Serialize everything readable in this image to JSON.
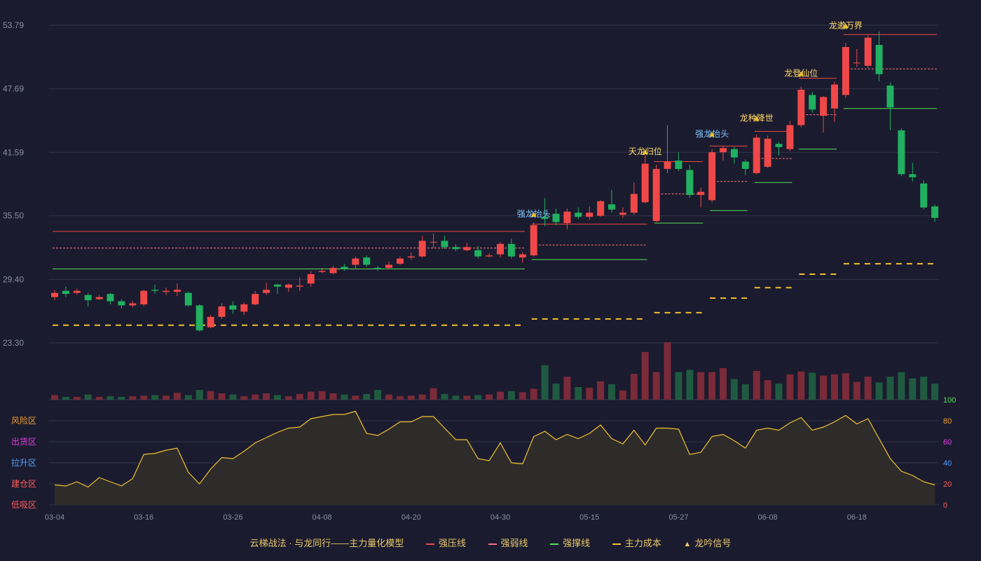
{
  "chart_data": {
    "type": "candlestick",
    "price_axis": {
      "ticks": [
        "53.79",
        "47.69",
        "41.59",
        "35.50",
        "29.40",
        "23.30"
      ],
      "min": 23.3,
      "max": 53.79
    },
    "x_ticks": [
      "03-04",
      "03-16",
      "03-26",
      "04-08",
      "04-20",
      "04-30",
      "05-15",
      "05-27",
      "06-08",
      "06-18"
    ],
    "x_tick_index": [
      0,
      8,
      16,
      24,
      32,
      40,
      48,
      56,
      64,
      72
    ],
    "candles": [
      [
        27.7,
        28.1,
        27.4,
        28.4
      ],
      [
        28.3,
        28.0,
        27.7,
        28.7
      ],
      [
        28.1,
        28.3,
        27.9,
        28.5
      ],
      [
        27.9,
        27.4,
        26.8,
        28.1
      ],
      [
        27.5,
        27.7,
        27.4,
        27.9
      ],
      [
        28.0,
        27.3,
        27.0,
        28.1
      ],
      [
        27.3,
        26.9,
        26.6,
        27.5
      ],
      [
        26.9,
        27.1,
        26.7,
        27.3
      ],
      [
        27.0,
        28.3,
        26.8,
        28.4
      ],
      [
        28.4,
        28.3,
        28.0,
        28.9
      ],
      [
        28.2,
        28.3,
        27.9,
        28.6
      ],
      [
        28.2,
        28.4,
        27.8,
        29.0
      ],
      [
        28.1,
        26.9,
        26.8,
        28.2
      ],
      [
        26.9,
        24.5,
        24.4,
        27.0
      ],
      [
        24.8,
        25.8,
        24.7,
        26.0
      ],
      [
        25.8,
        26.8,
        25.6,
        27.1
      ],
      [
        26.9,
        26.5,
        26.1,
        27.3
      ],
      [
        26.3,
        27.0,
        26.0,
        27.2
      ],
      [
        27.0,
        28.0,
        26.9,
        28.3
      ],
      [
        28.1,
        28.4,
        27.9,
        29.1
      ],
      [
        28.9,
        28.7,
        28.0,
        29.0
      ],
      [
        28.6,
        28.9,
        28.2,
        29.0
      ],
      [
        28.7,
        28.8,
        28.3,
        29.6
      ],
      [
        29.0,
        29.9,
        28.7,
        30.2
      ],
      [
        30.1,
        30.2,
        30.0,
        30.5
      ],
      [
        30.0,
        30.5,
        29.9,
        30.7
      ],
      [
        30.6,
        30.4,
        30.2,
        30.9
      ],
      [
        30.8,
        31.4,
        30.4,
        31.6
      ],
      [
        31.5,
        30.8,
        30.6,
        31.7
      ],
      [
        30.5,
        30.4,
        30.2,
        30.7
      ],
      [
        30.5,
        30.8,
        30.4,
        31.1
      ],
      [
        30.9,
        31.4,
        30.8,
        31.6
      ],
      [
        31.5,
        31.6,
        31.3,
        32.0
      ],
      [
        31.6,
        33.1,
        31.5,
        33.6
      ],
      [
        33.0,
        33.0,
        32.4,
        33.8
      ],
      [
        33.1,
        32.5,
        32.3,
        33.6
      ],
      [
        32.5,
        32.3,
        32.1,
        32.8
      ],
      [
        32.2,
        32.5,
        32.1,
        32.9
      ],
      [
        32.2,
        31.6,
        31.4,
        32.6
      ],
      [
        31.6,
        31.7,
        31.5,
        31.9
      ],
      [
        31.8,
        32.8,
        31.5,
        33.0
      ],
      [
        32.8,
        31.6,
        31.4,
        33.3
      ],
      [
        31.5,
        31.8,
        31.0,
        32.0
      ],
      [
        31.7,
        34.6,
        31.6,
        34.9
      ],
      [
        35.4,
        35.2,
        34.5,
        37.2
      ],
      [
        35.7,
        34.9,
        34.6,
        36.2
      ],
      [
        34.8,
        35.9,
        34.2,
        36.2
      ],
      [
        35.8,
        35.4,
        35.2,
        36.3
      ],
      [
        35.4,
        35.8,
        35.1,
        36.4
      ],
      [
        35.5,
        36.9,
        35.4,
        37.0
      ],
      [
        36.6,
        36.1,
        35.8,
        38.0
      ],
      [
        35.6,
        35.8,
        35.3,
        36.3
      ],
      [
        35.8,
        37.6,
        35.6,
        38.7
      ],
      [
        36.8,
        40.5,
        36.7,
        41.3
      ],
      [
        35.0,
        40.0,
        34.9,
        40.4
      ],
      [
        40.0,
        40.7,
        39.6,
        44.2
      ],
      [
        40.8,
        40.0,
        39.8,
        41.6
      ],
      [
        39.9,
        37.5,
        37.2,
        40.4
      ],
      [
        37.5,
        37.8,
        36.3,
        38.2
      ],
      [
        37.0,
        41.6,
        36.8,
        41.9
      ],
      [
        41.6,
        42.0,
        40.8,
        42.2
      ],
      [
        41.9,
        41.1,
        40.5,
        42.1
      ],
      [
        40.7,
        40.0,
        39.4,
        40.9
      ],
      [
        39.6,
        43.0,
        39.5,
        43.3
      ],
      [
        40.2,
        42.9,
        40.1,
        43.2
      ],
      [
        42.4,
        42.1,
        41.3,
        42.6
      ],
      [
        41.9,
        44.2,
        41.7,
        44.6
      ],
      [
        44.2,
        47.6,
        44.0,
        47.9
      ],
      [
        47.1,
        45.7,
        45.4,
        47.4
      ],
      [
        45.1,
        46.9,
        43.5,
        47.0
      ],
      [
        45.8,
        48.1,
        44.5,
        48.4
      ],
      [
        47.1,
        51.7,
        46.8,
        52.1
      ],
      [
        50.2,
        50.2,
        49.8,
        51.5
      ],
      [
        49.9,
        52.6,
        49.7,
        52.9
      ],
      [
        51.9,
        49.1,
        48.4,
        53.2
      ],
      [
        48.0,
        45.9,
        43.7,
        48.3
      ],
      [
        43.7,
        39.5,
        39.3,
        43.9
      ],
      [
        39.5,
        39.2,
        38.8,
        40.6
      ],
      [
        38.6,
        36.3,
        36.1,
        38.9
      ],
      [
        36.4,
        35.3,
        34.9,
        36.6
      ]
    ],
    "volume_max": 100,
    "volume": [
      8,
      5,
      5,
      9,
      5,
      6,
      5,
      6,
      7,
      8,
      7,
      12,
      8,
      17,
      15,
      11,
      9,
      6,
      9,
      11,
      8,
      6,
      10,
      14,
      15,
      11,
      9,
      7,
      10,
      17,
      9,
      6,
      7,
      9,
      20,
      10,
      7,
      7,
      8,
      9,
      14,
      15,
      13,
      19,
      60,
      28,
      40,
      22,
      21,
      32,
      27,
      16,
      45,
      83,
      48,
      100,
      48,
      52,
      48,
      48,
      55,
      36,
      27,
      50,
      34,
      28,
      44,
      49,
      47,
      42,
      44,
      46,
      31,
      40,
      30,
      40,
      48,
      37,
      40,
      28
    ],
    "resistance_lines": [
      {
        "x": [
          0,
          42
        ],
        "y": 34.0
      },
      {
        "x": [
          43,
          53
        ],
        "y": 34.7
      },
      {
        "x": [
          54,
          58
        ],
        "y": 40.7
      },
      {
        "x": [
          59,
          62
        ],
        "y": 42.2
      },
      {
        "x": [
          63,
          66
        ],
        "y": 43.6
      },
      {
        "x": [
          67,
          70
        ],
        "y": 48.7
      },
      {
        "x": [
          71,
          79
        ],
        "y": 52.9
      }
    ],
    "weak_lines": [
      {
        "x": [
          0,
          42
        ],
        "y": 32.4
      },
      {
        "x": [
          43,
          53
        ],
        "y": 32.7
      },
      {
        "x": [
          54,
          58
        ],
        "y": 37.6
      },
      {
        "x": [
          59,
          62
        ],
        "y": 38.8
      },
      {
        "x": [
          63,
          66
        ],
        "y": 41.0
      },
      {
        "x": [
          67,
          70
        ],
        "y": 45.2
      },
      {
        "x": [
          71,
          79
        ],
        "y": 49.6
      }
    ],
    "support_lines": [
      {
        "x": [
          0,
          42
        ],
        "y": 30.4
      },
      {
        "x": [
          43,
          53
        ],
        "y": 31.3
      },
      {
        "x": [
          54,
          58
        ],
        "y": 34.8
      },
      {
        "x": [
          59,
          62
        ],
        "y": 36.0
      },
      {
        "x": [
          63,
          66
        ],
        "y": 38.7
      },
      {
        "x": [
          67,
          70
        ],
        "y": 41.9
      },
      {
        "x": [
          71,
          79
        ],
        "y": 45.8
      }
    ],
    "cost_lines": [
      {
        "x": [
          0,
          42
        ],
        "y": 25.0
      },
      {
        "x": [
          43,
          53
        ],
        "y": 25.6
      },
      {
        "x": [
          54,
          58
        ],
        "y": 26.2
      },
      {
        "x": [
          59,
          62
        ],
        "y": 27.6
      },
      {
        "x": [
          63,
          66
        ],
        "y": 28.6
      },
      {
        "x": [
          67,
          70
        ],
        "y": 29.9
      },
      {
        "x": [
          71,
          79
        ],
        "y": 30.9
      }
    ],
    "signals": [
      {
        "i": 43,
        "price": 35.0,
        "label": "强龙抬头",
        "color": "#7ec4ff"
      },
      {
        "i": 53,
        "price": 41.0,
        "label": "天龙归位",
        "color": "#ffd86a"
      },
      {
        "i": 59,
        "price": 42.7,
        "label": "强龙抬头",
        "color": "#7ec4ff"
      },
      {
        "i": 63,
        "price": 44.2,
        "label": "龙种降世",
        "color": "#ffd86a"
      },
      {
        "i": 67,
        "price": 48.5,
        "label": "龙登仙位",
        "color": "#ffd86a"
      },
      {
        "i": 71,
        "price": 53.1,
        "label": "龙遨万界",
        "color": "#ffd86a"
      }
    ],
    "oscillator": {
      "right_ticks": [
        "100",
        "80",
        "60",
        "40",
        "20",
        "0"
      ],
      "zones": [
        {
          "label": "风险区",
          "color": "#f0a030"
        },
        {
          "label": "出货区",
          "color": "#e040e0"
        },
        {
          "label": "拉升区",
          "color": "#4fa0ff"
        },
        {
          "label": "建仓区",
          "color": "#ff5a5a"
        },
        {
          "label": "低吸区",
          "color": "#ff5a5a"
        }
      ],
      "values": [
        19,
        18,
        22,
        17,
        26,
        22,
        18,
        25,
        48,
        49,
        52,
        54,
        31,
        20,
        34,
        45,
        44,
        51,
        59,
        64,
        69,
        73,
        74,
        82,
        84,
        86,
        86,
        89,
        68,
        66,
        72,
        79,
        79,
        84,
        84,
        73,
        62,
        62,
        44,
        42,
        59,
        40,
        39,
        65,
        70,
        62,
        67,
        63,
        68,
        76,
        63,
        58,
        71,
        57,
        73,
        73,
        72,
        48,
        50,
        65,
        67,
        61,
        54,
        71,
        73,
        71,
        78,
        83,
        71,
        74,
        79,
        85,
        77,
        82,
        63,
        44,
        32,
        28,
        22,
        19
      ]
    },
    "legend": {
      "title": "云梯战法 · 与龙同行——主力量化模型",
      "items": [
        {
          "label": "强压线",
          "color": "#f04848",
          "style": "solid"
        },
        {
          "label": "强弱线",
          "color": "#ff7080",
          "style": "dashed"
        },
        {
          "label": "强撑线",
          "color": "#56e05c",
          "style": "solid"
        },
        {
          "label": "主力成本",
          "color": "#f0c030",
          "style": "dashed"
        },
        {
          "label": "龙吟信号",
          "color": "#f0c030",
          "style": "triangle"
        }
      ]
    },
    "colors": {
      "up": "#f04848",
      "down": "#20b060",
      "volume_up": "#7a2a38",
      "volume_down": "#1f5a40",
      "oscillator_line": "#f0c030"
    }
  }
}
